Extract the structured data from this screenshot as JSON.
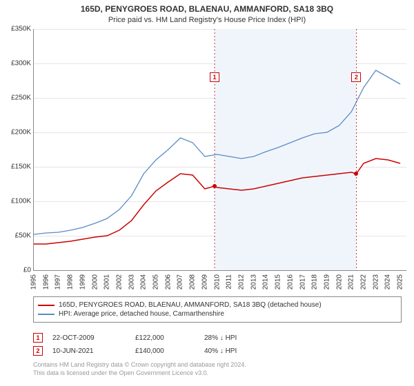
{
  "title": "165D, PENYGROES ROAD, BLAENAU, AMMANFORD, SA18 3BQ",
  "subtitle": "Price paid vs. HM Land Registry's House Price Index (HPI)",
  "chart": {
    "type": "line",
    "xlim": [
      1995,
      2025.5
    ],
    "ylim": [
      0,
      350000
    ],
    "ytick_step": 50000,
    "ytick_prefix": "£",
    "ytick_suffix": "K",
    "xtick_step": 1,
    "background_color": "#ffffff",
    "grid_color": "#e5e5e5",
    "axis_color": "#888888",
    "shaded": {
      "start": 2009.8,
      "end": 2021.4,
      "color": "#f0f5fc"
    },
    "series": [
      {
        "name": "price_paid",
        "color": "#cc0000",
        "width": 1.5,
        "data": [
          [
            1995,
            38000
          ],
          [
            1996,
            38000
          ],
          [
            1997,
            40000
          ],
          [
            1998,
            42000
          ],
          [
            1999,
            45000
          ],
          [
            2000,
            48000
          ],
          [
            2001,
            50000
          ],
          [
            2002,
            58000
          ],
          [
            2003,
            72000
          ],
          [
            2004,
            95000
          ],
          [
            2005,
            115000
          ],
          [
            2006,
            128000
          ],
          [
            2007,
            140000
          ],
          [
            2008,
            138000
          ],
          [
            2009,
            118000
          ],
          [
            2009.8,
            122000
          ],
          [
            2010,
            120000
          ],
          [
            2011,
            118000
          ],
          [
            2012,
            116000
          ],
          [
            2013,
            118000
          ],
          [
            2014,
            122000
          ],
          [
            2015,
            126000
          ],
          [
            2016,
            130000
          ],
          [
            2017,
            134000
          ],
          [
            2018,
            136000
          ],
          [
            2019,
            138000
          ],
          [
            2020,
            140000
          ],
          [
            2021,
            142000
          ],
          [
            2021.4,
            140000
          ],
          [
            2022,
            155000
          ],
          [
            2023,
            162000
          ],
          [
            2024,
            160000
          ],
          [
            2025,
            155000
          ]
        ]
      },
      {
        "name": "hpi",
        "color": "#5a8ac6",
        "width": 1.3,
        "data": [
          [
            1995,
            52000
          ],
          [
            1996,
            54000
          ],
          [
            1997,
            55000
          ],
          [
            1998,
            58000
          ],
          [
            1999,
            62000
          ],
          [
            2000,
            68000
          ],
          [
            2001,
            75000
          ],
          [
            2002,
            88000
          ],
          [
            2003,
            108000
          ],
          [
            2004,
            140000
          ],
          [
            2005,
            160000
          ],
          [
            2006,
            175000
          ],
          [
            2007,
            192000
          ],
          [
            2008,
            185000
          ],
          [
            2009,
            165000
          ],
          [
            2010,
            168000
          ],
          [
            2011,
            165000
          ],
          [
            2012,
            162000
          ],
          [
            2013,
            165000
          ],
          [
            2014,
            172000
          ],
          [
            2015,
            178000
          ],
          [
            2016,
            185000
          ],
          [
            2017,
            192000
          ],
          [
            2018,
            198000
          ],
          [
            2019,
            200000
          ],
          [
            2020,
            210000
          ],
          [
            2021,
            230000
          ],
          [
            2022,
            265000
          ],
          [
            2023,
            290000
          ],
          [
            2024,
            280000
          ],
          [
            2025,
            270000
          ]
        ]
      }
    ],
    "markers": [
      {
        "n": "1",
        "x": 2009.8,
        "y": 122000,
        "label_y": 280000
      },
      {
        "n": "2",
        "x": 2021.4,
        "y": 140000,
        "label_y": 280000
      }
    ]
  },
  "legend": [
    {
      "color": "#cc0000",
      "label": "165D, PENYGROES ROAD, BLAENAU, AMMANFORD, SA18 3BQ (detached house)"
    },
    {
      "color": "#5a8ac6",
      "label": "HPI: Average price, detached house, Carmarthenshire"
    }
  ],
  "sales": [
    {
      "n": "1",
      "date": "22-OCT-2009",
      "price": "£122,000",
      "delta": "28% ↓ HPI"
    },
    {
      "n": "2",
      "date": "10-JUN-2021",
      "price": "£140,000",
      "delta": "40% ↓ HPI"
    }
  ],
  "footer": {
    "line1": "Contains HM Land Registry data © Crown copyright and database right 2024.",
    "line2": "This data is licensed under the Open Government Licence v3.0."
  }
}
